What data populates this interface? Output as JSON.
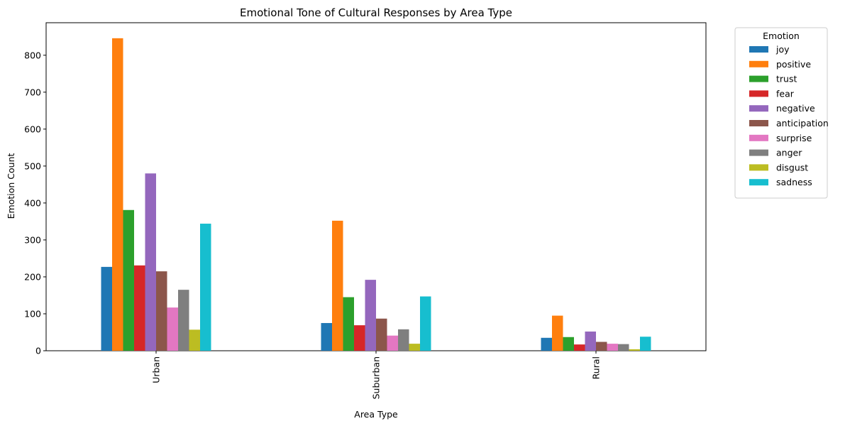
{
  "chart_data": {
    "type": "bar",
    "title": "Emotional Tone of Cultural Responses by Area Type",
    "xlabel": "Area Type",
    "ylabel": "Emotion Count",
    "categories": [
      "Urban",
      "Suburban",
      "Rural"
    ],
    "ylim": [
      0,
      888
    ],
    "yticks": [
      0,
      100,
      200,
      300,
      400,
      500,
      600,
      700,
      800
    ],
    "grid": false,
    "legend": {
      "title": "Emotion",
      "placement": "outside-top-right"
    },
    "series": [
      {
        "name": "joy",
        "color": "#1f77b4",
        "values": [
          227,
          75,
          35
        ]
      },
      {
        "name": "positive",
        "color": "#ff7f0e",
        "values": [
          846,
          352,
          95
        ]
      },
      {
        "name": "trust",
        "color": "#2ca02c",
        "values": [
          381,
          145,
          37
        ]
      },
      {
        "name": "fear",
        "color": "#d62728",
        "values": [
          231,
          69,
          17
        ]
      },
      {
        "name": "negative",
        "color": "#9467bd",
        "values": [
          480,
          192,
          52
        ]
      },
      {
        "name": "anticipation",
        "color": "#8c564b",
        "values": [
          215,
          87,
          24
        ]
      },
      {
        "name": "surprise",
        "color": "#e377c2",
        "values": [
          117,
          41,
          19
        ]
      },
      {
        "name": "anger",
        "color": "#7f7f7f",
        "values": [
          165,
          58,
          18
        ]
      },
      {
        "name": "disgust",
        "color": "#bcbd22",
        "values": [
          57,
          19,
          4
        ]
      },
      {
        "name": "sadness",
        "color": "#17becf",
        "values": [
          344,
          147,
          38
        ]
      }
    ]
  }
}
